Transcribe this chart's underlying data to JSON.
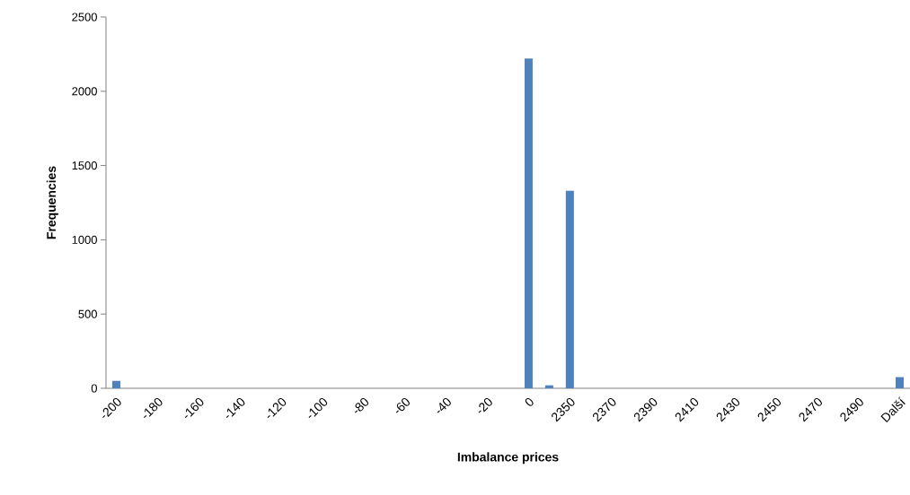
{
  "chart_data": {
    "type": "bar",
    "xlabel": "Imbalance prices",
    "ylabel": "Frequencies",
    "categories": [
      "-200",
      null,
      "-180",
      null,
      "-160",
      null,
      "-140",
      null,
      "-120",
      null,
      "-100",
      null,
      "-80",
      null,
      "-60",
      null,
      "-40",
      null,
      "-20",
      null,
      "0",
      null,
      "2350",
      null,
      "2370",
      null,
      "2390",
      null,
      "2410",
      null,
      "2430",
      null,
      "2450",
      null,
      "2470",
      null,
      "2490",
      null,
      "Další"
    ],
    "values": [
      50,
      0,
      0,
      0,
      0,
      0,
      0,
      0,
      0,
      0,
      0,
      0,
      0,
      0,
      0,
      0,
      0,
      0,
      0,
      0,
      2220,
      20,
      1330,
      0,
      0,
      0,
      0,
      0,
      0,
      0,
      0,
      0,
      0,
      0,
      0,
      0,
      0,
      0,
      75
    ],
    "color": "#4f81bd",
    "ylim": [
      0,
      2500
    ],
    "yticks": [
      0,
      500,
      1000,
      1500,
      2000,
      2500
    ]
  }
}
